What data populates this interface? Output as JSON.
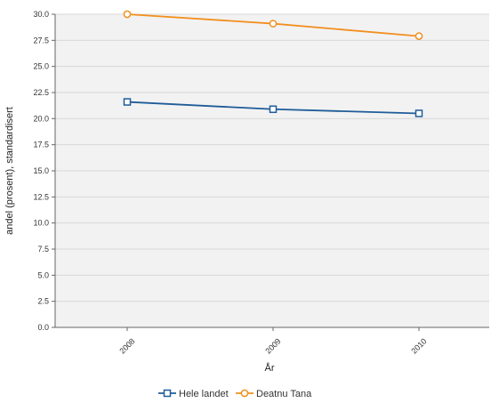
{
  "chart_data": {
    "type": "line",
    "categories": [
      "2008",
      "2009",
      "2010"
    ],
    "series": [
      {
        "name": "Hele landet",
        "values": [
          21.6,
          20.9,
          20.5
        ],
        "color": "#1f5c99",
        "marker": "square"
      },
      {
        "name": "Deatnu Tana",
        "values": [
          30.0,
          29.1,
          27.9
        ],
        "color": "#f28f1f",
        "marker": "circle"
      }
    ],
    "xlabel": "År",
    "ylabel": "andel (prosent), standardisert",
    "ylim": [
      0,
      30
    ],
    "yticks": [
      "0.0",
      "2.5",
      "5.0",
      "7.5",
      "10.0",
      "12.5",
      "15.0",
      "17.5",
      "20.0",
      "22.5",
      "25.0",
      "27.5",
      "30.0"
    ],
    "grid": true,
    "legend": "bottom-center",
    "plot_background": "#f2f2f2"
  }
}
